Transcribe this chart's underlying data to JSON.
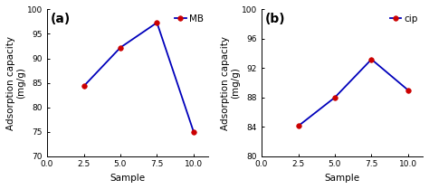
{
  "panel_a": {
    "label": "(a)",
    "x": [
      2.5,
      5.0,
      7.5,
      10.0
    ],
    "y": [
      84.3,
      92.2,
      97.3,
      75.0
    ],
    "legend": "MB",
    "xlabel": "Sample",
    "ylabel": "Adsorption capacity\n(mg/g)",
    "xlim": [
      0.0,
      11.0
    ],
    "ylim": [
      70,
      100
    ],
    "yticks": [
      70,
      75,
      80,
      85,
      90,
      95,
      100
    ],
    "xticks": [
      0.0,
      2.5,
      5.0,
      7.5,
      10.0
    ]
  },
  "panel_b": {
    "label": "(b)",
    "x": [
      2.5,
      5.0,
      7.5,
      10.0
    ],
    "y": [
      84.1,
      88.0,
      93.2,
      89.0
    ],
    "legend": "cip",
    "xlabel": "Sample",
    "ylabel": "Adsorption capacity\n(mg/g)",
    "xlim": [
      0.0,
      11.0
    ],
    "ylim": [
      80,
      100
    ],
    "yticks": [
      80,
      84,
      88,
      92,
      96,
      100
    ],
    "xticks": [
      0.0,
      2.5,
      5.0,
      7.5,
      10.0
    ]
  },
  "line_color": "#0000bb",
  "marker_color": "#cc0000",
  "marker": "o",
  "marker_size": 4,
  "line_width": 1.3,
  "font_size_label": 7.5,
  "font_size_tick": 6.5,
  "font_size_legend": 7.5,
  "font_size_panel_label": 10,
  "bg_color": "#ffffff"
}
